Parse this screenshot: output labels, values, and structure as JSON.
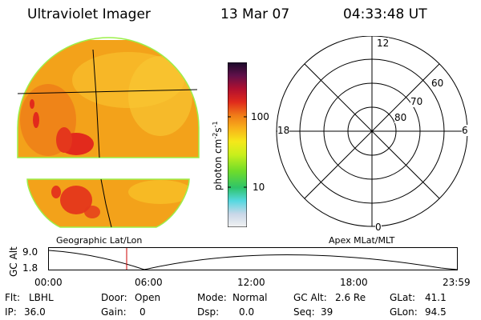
{
  "header": {
    "title": "Ultraviolet Imager",
    "date": "13 Mar 07",
    "time": "04:33:48 UT"
  },
  "colorbar": {
    "unit_label": "photon cm",
    "unit_exp1": "-2",
    "unit_s": "s",
    "unit_exp2": "-1",
    "tick_100": "100",
    "tick_10": "10"
  },
  "polar": {
    "mlt_12": "12",
    "mlt_18": "18",
    "mlt_6": "6",
    "mlt_0": "0",
    "lat_60": "60",
    "lat_70": "70",
    "lat_80": "80"
  },
  "labels": {
    "geo": "Geographic Lat/Lon",
    "apex": "Apex MLat/MLT"
  },
  "altitude_plot": {
    "ylabel": "GC Alt",
    "ymax": "9.0",
    "ymin": "1.8",
    "xticks": [
      "00:00",
      "06:00",
      "12:00",
      "18:00",
      "23:59"
    ]
  },
  "info": {
    "flt_label": "Flt:",
    "flt_value": "LBHL",
    "ip_label": "IP:",
    "ip_value": "36.0",
    "door_label": "Door:",
    "door_value": "Open",
    "gain_label": "Gain:",
    "gain_value": "0",
    "mode_label": "Mode:",
    "mode_value": "Normal",
    "dsp_label": "Dsp:",
    "dsp_value": "0.0",
    "gcalt_label": "GC Alt:",
    "gcalt_value": "2.6 Re",
    "seq_label": "Seq:",
    "seq_value": "39",
    "glat_label": "GLat:",
    "glat_value": "41.1",
    "glon_label": "GLon:",
    "glon_value": "94.5"
  },
  "colors": {
    "disk_main": "#f5a418",
    "disk_light": "#f8c52a",
    "disk_hot": "#e22a1c",
    "limb": "#9cf04a",
    "marker": "#cc0000"
  }
}
